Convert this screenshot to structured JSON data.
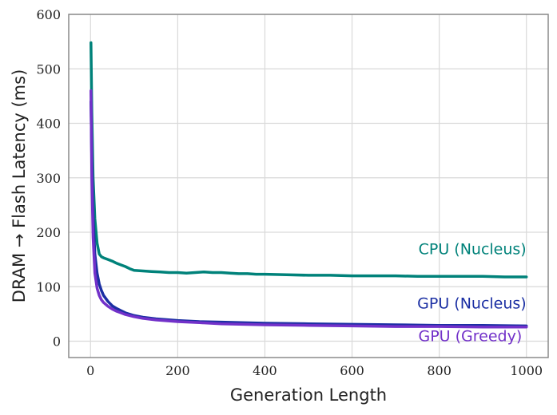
{
  "chart_data": {
    "type": "line",
    "title": "",
    "xlabel": "Generation Length",
    "ylabel": "DRAM → Flash   Latency (ms)",
    "xlim": [
      -50,
      1050
    ],
    "ylim": [
      -30,
      600
    ],
    "xticks": [
      0,
      200,
      400,
      600,
      800,
      1000
    ],
    "yticks": [
      0,
      100,
      200,
      300,
      400,
      500,
      600
    ],
    "grid": true,
    "series": [
      {
        "name": "CPU (Nucleus)",
        "color": "#00827a",
        "x": [
          1,
          3,
          6,
          10,
          15,
          20,
          25,
          30,
          40,
          50,
          60,
          70,
          80,
          90,
          100,
          120,
          140,
          160,
          180,
          200,
          220,
          240,
          260,
          280,
          300,
          320,
          340,
          360,
          380,
          400,
          450,
          500,
          550,
          600,
          650,
          700,
          750,
          800,
          850,
          900,
          950,
          1000
        ],
        "values": [
          548,
          420,
          300,
          225,
          180,
          160,
          155,
          153,
          150,
          147,
          143,
          140,
          137,
          133,
          130,
          129,
          128,
          127,
          126,
          126,
          125,
          126,
          127,
          126,
          126,
          125,
          124,
          124,
          123,
          123,
          122,
          121,
          121,
          120,
          120,
          120,
          119,
          119,
          119,
          119,
          118,
          118
        ]
      },
      {
        "name": "GPU (Nucleus)",
        "color": "#1b2fa3",
        "x": [
          1,
          3,
          6,
          10,
          15,
          20,
          25,
          30,
          40,
          50,
          60,
          70,
          80,
          100,
          120,
          150,
          200,
          250,
          300,
          400,
          500,
          600,
          700,
          800,
          900,
          1000
        ],
        "values": [
          440,
          330,
          230,
          160,
          125,
          105,
          93,
          84,
          73,
          65,
          60,
          56,
          52,
          47,
          44,
          41,
          38,
          36,
          35,
          33,
          32,
          31,
          30,
          29,
          29,
          28
        ]
      },
      {
        "name": "GPU (Greedy)",
        "color": "#7231c9",
        "x": [
          1,
          3,
          6,
          10,
          15,
          20,
          25,
          30,
          40,
          50,
          60,
          70,
          80,
          100,
          120,
          150,
          200,
          250,
          300,
          400,
          500,
          600,
          700,
          800,
          900,
          1000
        ],
        "values": [
          460,
          300,
          190,
          125,
          97,
          84,
          76,
          71,
          64,
          59,
          55,
          52,
          49,
          45,
          42,
          39,
          36,
          34,
          32,
          30,
          29,
          28,
          27,
          27,
          26,
          26
        ]
      }
    ],
    "annotations": [
      {
        "text": "CPU (Nucleus)",
        "x": 1000,
        "y": 160,
        "color": "#00827a"
      },
      {
        "text": "GPU (Nucleus)",
        "x": 1000,
        "y": 60,
        "color": "#1b2fa3"
      },
      {
        "text": "GPU (Greedy)",
        "x": 990,
        "y": 0,
        "color": "#7231c9"
      }
    ]
  }
}
